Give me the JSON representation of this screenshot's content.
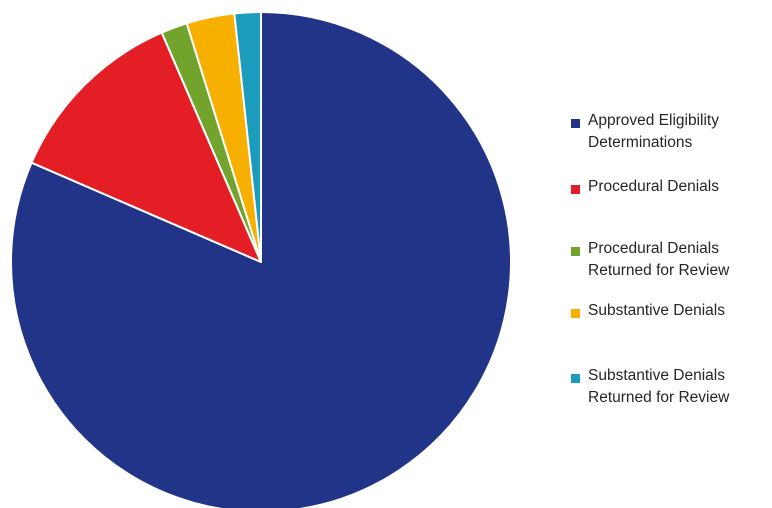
{
  "chart_data": {
    "type": "pie",
    "title": "",
    "start_angle_deg": 0,
    "direction": "clockwise",
    "legend_position": "right",
    "slices": [
      {
        "label": "Approved Eligibility\nDeterminations",
        "value": 81.5,
        "color": "#223487"
      },
      {
        "label": "Procedural Denials",
        "value": 12.0,
        "color": "#e31e25"
      },
      {
        "label": "Procedural Denials\nReturned for Review",
        "value": 1.7,
        "color": "#72a42d"
      },
      {
        "label": "Substantive Denials",
        "value": 3.1,
        "color": "#f7b000"
      },
      {
        "label": "Substantive Denials\nReturned for Review",
        "value": 1.7,
        "color": "#1b9cbc"
      }
    ]
  }
}
